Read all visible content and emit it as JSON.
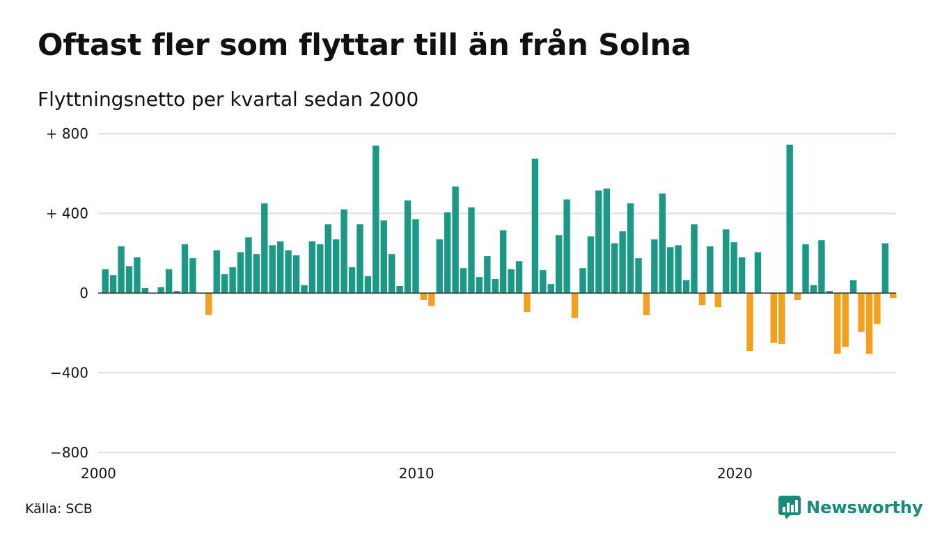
{
  "header": {
    "title": "Oftast fler som flyttar till än från Solna",
    "subtitle": "Flyttningsnetto per kvartal sedan 2000"
  },
  "footer": {
    "source": "Källa: SCB",
    "brand": "Newsworthy"
  },
  "colors": {
    "positive": "#1a9a86",
    "negative": "#f5a01a",
    "grid": "#dddddd",
    "brand": "#1a8b78"
  },
  "icons": {
    "brand_logo": "bar-chart-speech-bubble-icon"
  },
  "chart_data": {
    "type": "bar",
    "title": "Oftast fler som flyttar till än från Solna",
    "subtitle": "Flyttningsnetto per kvartal sedan 2000",
    "xlabel": "",
    "ylabel": "",
    "x_start": "2000 Q1",
    "x_ticks": [
      "2000",
      "2010",
      "2020"
    ],
    "y_ticks": [
      {
        "value": 800,
        "label": "+ 800"
      },
      {
        "value": 400,
        "label": "+ 400"
      },
      {
        "value": 0,
        "label": "0"
      },
      {
        "value": -400,
        "label": "−400"
      },
      {
        "value": -800,
        "label": "−800"
      }
    ],
    "ylim": [
      -800,
      800
    ],
    "grid": true,
    "legend": "none",
    "values": [
      120,
      90,
      235,
      135,
      180,
      25,
      0,
      30,
      120,
      10,
      245,
      175,
      0,
      -110,
      215,
      95,
      130,
      205,
      280,
      195,
      450,
      240,
      260,
      215,
      190,
      40,
      260,
      245,
      345,
      270,
      420,
      130,
      345,
      85,
      740,
      365,
      195,
      35,
      465,
      370,
      -35,
      -65,
      270,
      405,
      535,
      125,
      430,
      80,
      185,
      70,
      315,
      120,
      160,
      -95,
      675,
      115,
      45,
      290,
      470,
      -125,
      125,
      285,
      515,
      525,
      250,
      310,
      450,
      175,
      -110,
      270,
      500,
      230,
      240,
      65,
      345,
      -60,
      235,
      -70,
      320,
      255,
      180,
      -290,
      205,
      0,
      -250,
      -255,
      745,
      -35,
      245,
      40,
      265,
      10,
      -305,
      -270,
      65,
      -195,
      -305,
      -155,
      250,
      -25
    ]
  }
}
